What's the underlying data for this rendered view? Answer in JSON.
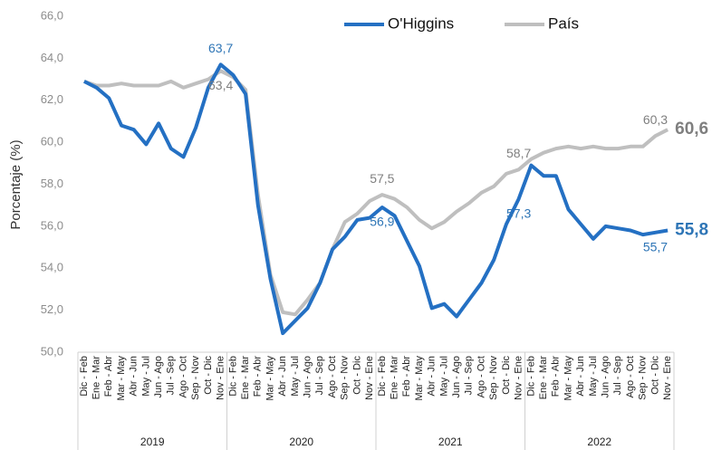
{
  "chart_data": {
    "type": "line",
    "y_label": "Porcentaje (%)",
    "categories": [
      "Dic - Feb",
      "Ene - Mar",
      "Feb - Abr",
      "Mar - May",
      "Abr - Jun",
      "May - Jul",
      "Jun - Ago",
      "Jul - Sep",
      "Ago - Oct",
      "Sep - Nov",
      "Oct - Dic",
      "Nov - Ene",
      "Dic - Feb",
      "Ene - Mar",
      "Feb - Abr",
      "Mar - May",
      "Abr - Jun",
      "May - Jul",
      "Jun - Ago",
      "Jul - Sep",
      "Ago - Oct",
      "Sep - Nov",
      "Oct - Dic",
      "Nov - Ene",
      "Dic - Feb",
      "Ene - Mar",
      "Feb - Abr",
      "Mar - May",
      "Abr - Jun",
      "May - Jul",
      "Jun - Ago",
      "Jul - Sep",
      "Ago - Oct",
      "Sep - Nov",
      "Oct - Dic",
      "Nov - Ene",
      "Dic - Feb",
      "Ene - Mar",
      "Feb - Abr",
      "Mar - May",
      "Abr - Jun",
      "May - Jul",
      "Jun - Ago",
      "Jul - Sep",
      "Ago - Oct",
      "Sep - Nov",
      "Oct - Dic",
      "Nov - Ene"
    ],
    "x_groups": [
      "2019",
      "2020",
      "2021",
      "2022"
    ],
    "series": [
      {
        "name": "O'Higgins",
        "color": "#2470c3",
        "label_color": "#2e75b6",
        "values": [
          62.9,
          62.6,
          62.1,
          60.8,
          60.6,
          59.9,
          60.9,
          59.7,
          59.3,
          60.7,
          62.6,
          63.7,
          63.2,
          62.3,
          57.0,
          53.5,
          50.9,
          51.5,
          52.1,
          53.3,
          54.9,
          55.5,
          56.3,
          56.4,
          56.9,
          56.5,
          55.3,
          54.1,
          52.1,
          52.3,
          51.7,
          52.5,
          53.3,
          54.4,
          56.1,
          57.3,
          58.9,
          58.4,
          58.4,
          56.8,
          56.1,
          55.4,
          56.0,
          55.9,
          55.8,
          55.6,
          55.7,
          55.8
        ],
        "value_labels": [
          null,
          null,
          null,
          null,
          null,
          null,
          null,
          null,
          null,
          null,
          null,
          "63,7",
          null,
          null,
          null,
          null,
          null,
          null,
          null,
          null,
          null,
          null,
          null,
          null,
          "56,9",
          null,
          null,
          null,
          null,
          null,
          null,
          null,
          null,
          null,
          null,
          "57,3",
          null,
          null,
          null,
          null,
          null,
          null,
          null,
          null,
          null,
          null,
          "55,7",
          "55,8"
        ]
      },
      {
        "name": "País",
        "color": "#bfbfbf",
        "label_color": "#7f7f7f",
        "values": [
          62.9,
          62.7,
          62.7,
          62.8,
          62.7,
          62.7,
          62.7,
          62.9,
          62.6,
          62.8,
          63.0,
          63.4,
          63.1,
          62.5,
          57.5,
          53.7,
          51.9,
          51.8,
          52.5,
          53.3,
          54.9,
          56.2,
          56.6,
          57.2,
          57.5,
          57.3,
          56.9,
          56.3,
          55.9,
          56.2,
          56.7,
          57.1,
          57.6,
          57.9,
          58.5,
          58.7,
          59.2,
          59.5,
          59.7,
          59.8,
          59.7,
          59.8,
          59.7,
          59.7,
          59.8,
          59.8,
          60.3,
          60.6
        ],
        "value_labels": [
          null,
          null,
          null,
          null,
          null,
          null,
          null,
          null,
          null,
          null,
          null,
          "63,4",
          null,
          null,
          null,
          null,
          null,
          null,
          null,
          null,
          null,
          null,
          null,
          null,
          "57,5",
          null,
          null,
          null,
          null,
          null,
          null,
          null,
          null,
          null,
          null,
          "58,7",
          null,
          null,
          null,
          null,
          null,
          null,
          null,
          null,
          null,
          null,
          "60,3",
          "60,6"
        ]
      }
    ],
    "ylim": [
      50,
      66
    ],
    "yticks": [
      {
        "value": 50,
        "label": "50,0"
      },
      {
        "value": 52,
        "label": "52,0"
      },
      {
        "value": 54,
        "label": "54,0"
      },
      {
        "value": 56,
        "label": "56,0"
      },
      {
        "value": 58,
        "label": "58,0"
      },
      {
        "value": 60,
        "label": "60,0"
      },
      {
        "value": 62,
        "label": "62,0"
      },
      {
        "value": 64,
        "label": "64,0"
      },
      {
        "value": 66,
        "label": "66,0"
      }
    ],
    "grid": false,
    "legend": "top"
  }
}
